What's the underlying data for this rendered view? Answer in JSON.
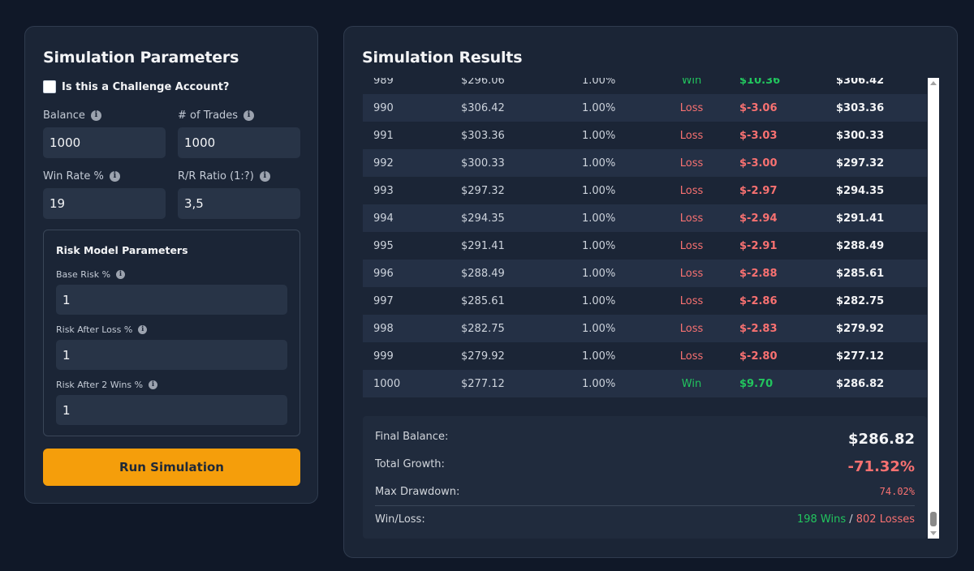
{
  "params": {
    "title": "Simulation Parameters",
    "challenge_label": "Is this a Challenge Account?",
    "challenge_checked": false,
    "balance": {
      "label": "Balance",
      "value": "1000"
    },
    "trades": {
      "label": "# of Trades",
      "value": "1000"
    },
    "win_rate": {
      "label": "Win Rate %",
      "value": "19"
    },
    "rr_ratio": {
      "label": "R/R Ratio (1:?)",
      "value": "3,5"
    },
    "risk_model": {
      "title": "Risk Model Parameters",
      "base_risk": {
        "label": "Base Risk %",
        "value": "1"
      },
      "risk_after_loss": {
        "label": "Risk After Loss %",
        "value": "1"
      },
      "risk_after_2_wins": {
        "label": "Risk After 2 Wins %",
        "value": "1"
      }
    },
    "run_label": "Run Simulation"
  },
  "results": {
    "title": "Simulation Results",
    "rows": [
      {
        "num": "989",
        "start": "$296.06",
        "risk": "1.00%",
        "outcome": "Win",
        "pnl": "$10.36",
        "end": "$306.42"
      },
      {
        "num": "990",
        "start": "$306.42",
        "risk": "1.00%",
        "outcome": "Loss",
        "pnl": "$-3.06",
        "end": "$303.36"
      },
      {
        "num": "991",
        "start": "$303.36",
        "risk": "1.00%",
        "outcome": "Loss",
        "pnl": "$-3.03",
        "end": "$300.33"
      },
      {
        "num": "992",
        "start": "$300.33",
        "risk": "1.00%",
        "outcome": "Loss",
        "pnl": "$-3.00",
        "end": "$297.32"
      },
      {
        "num": "993",
        "start": "$297.32",
        "risk": "1.00%",
        "outcome": "Loss",
        "pnl": "$-2.97",
        "end": "$294.35"
      },
      {
        "num": "994",
        "start": "$294.35",
        "risk": "1.00%",
        "outcome": "Loss",
        "pnl": "$-2.94",
        "end": "$291.41"
      },
      {
        "num": "995",
        "start": "$291.41",
        "risk": "1.00%",
        "outcome": "Loss",
        "pnl": "$-2.91",
        "end": "$288.49"
      },
      {
        "num": "996",
        "start": "$288.49",
        "risk": "1.00%",
        "outcome": "Loss",
        "pnl": "$-2.88",
        "end": "$285.61"
      },
      {
        "num": "997",
        "start": "$285.61",
        "risk": "1.00%",
        "outcome": "Loss",
        "pnl": "$-2.86",
        "end": "$282.75"
      },
      {
        "num": "998",
        "start": "$282.75",
        "risk": "1.00%",
        "outcome": "Loss",
        "pnl": "$-2.83",
        "end": "$279.92"
      },
      {
        "num": "999",
        "start": "$279.92",
        "risk": "1.00%",
        "outcome": "Loss",
        "pnl": "$-2.80",
        "end": "$277.12"
      },
      {
        "num": "1000",
        "start": "$277.12",
        "risk": "1.00%",
        "outcome": "Win",
        "pnl": "$9.70",
        "end": "$286.82"
      }
    ],
    "summary": {
      "final_balance_label": "Final Balance:",
      "final_balance": "$286.82",
      "total_growth_label": "Total Growth:",
      "total_growth": "-71.32%",
      "max_drawdown_label": "Max Drawdown:",
      "max_drawdown": "74.02%",
      "win_loss_label": "Win/Loss:",
      "wins": "198 Wins",
      "separator": " / ",
      "losses": "802 Losses"
    }
  },
  "colors": {
    "background": "#101828",
    "panel": "#1b2536",
    "accent": "#f59e0b",
    "win": "#22c55e",
    "loss": "#f87171"
  }
}
